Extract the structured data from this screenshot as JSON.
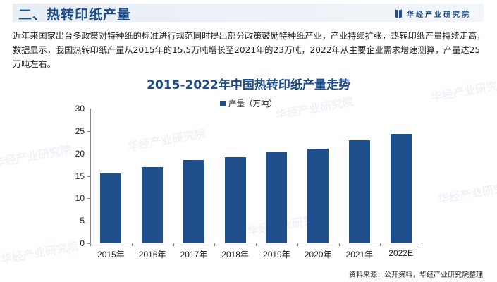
{
  "header": {
    "title": "二、热转印纸产量",
    "brand": "华经产业研究院"
  },
  "intro": {
    "text": "近年来国家出台多政策对特种纸的标准进行规范同时提出部分政策鼓励特种纸产业，产业持续扩张，热转印纸产量持续走高，数据显示，我国热转印纸产量从2015年的15.5万吨增长至2021年的23万吨，2022年从主要企业需求增速测算，产量达25万吨左右。"
  },
  "watermark": "华经产业研究院",
  "colors": {
    "accent": "#1f4e8c",
    "bar": "#1f4e8c"
  },
  "chart_data": {
    "type": "bar",
    "title": "2015-2022年中国热转印纸产量走势",
    "legend": [
      "产量（万吨）"
    ],
    "legend_position": "top",
    "categories": [
      "2015年",
      "2016年",
      "2017年",
      "2018年",
      "2019年",
      "2020年",
      "2021年",
      "2022E"
    ],
    "series": [
      {
        "name": "产量（万吨）",
        "values": [
          15.5,
          17.0,
          18.6,
          19.2,
          20.3,
          21.0,
          23.0,
          24.4
        ]
      }
    ],
    "xlabel": "",
    "ylabel": "",
    "ylim": [
      0,
      30
    ],
    "yticks": [
      0,
      5,
      10,
      15,
      20,
      25,
      30
    ],
    "grid": false
  },
  "source": "资料来源：公开资料，华经产业研究院整理"
}
